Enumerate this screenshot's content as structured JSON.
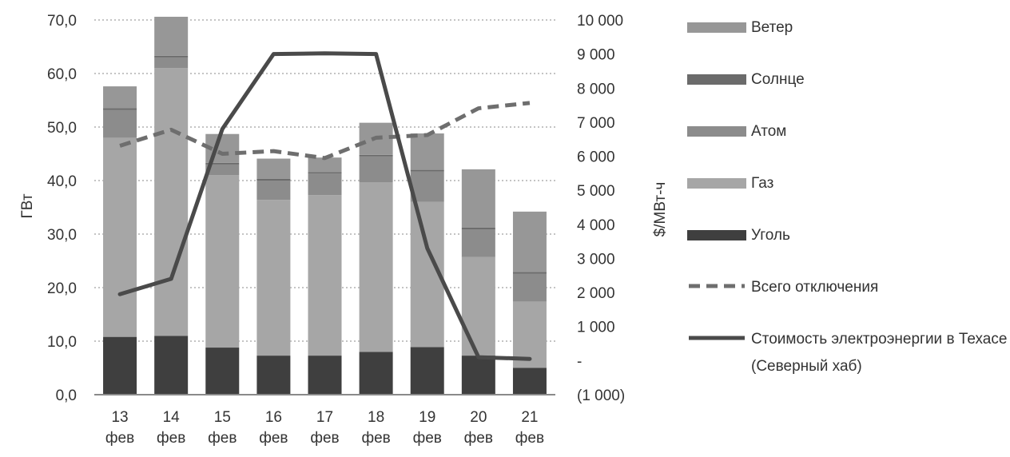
{
  "chart_data": {
    "type": "bar",
    "stacked": true,
    "categories": [
      "13 фев",
      "14 фев",
      "15 фев",
      "16 фев",
      "17 фев",
      "18 фев",
      "19 фев",
      "20 фев",
      "21 фев"
    ],
    "ylabel": "ГВт",
    "ylabel_right": "$/МВт-ч",
    "ylim": [
      0,
      70
    ],
    "ylim_right": [
      -1000,
      10000
    ],
    "y_ticks": [
      "0,0",
      "10,0",
      "20,0",
      "30,0",
      "40,0",
      "50,0",
      "60,0",
      "70,0"
    ],
    "y_right_ticks": [
      "(1 000)",
      "-",
      "1 000",
      "2 000",
      "3 000",
      "4 000",
      "5 000",
      "6 000",
      "7 000",
      "8 000",
      "9 000",
      "10 000"
    ],
    "grid": true,
    "legend_position": "right",
    "series": [
      {
        "name": "Уголь",
        "kind": "bar",
        "axis": "left",
        "color": "#3f3f3f",
        "values": [
          10.8,
          11.0,
          8.8,
          7.3,
          7.3,
          8.0,
          8.9,
          7.3,
          5.0
        ]
      },
      {
        "name": "Газ",
        "kind": "bar",
        "axis": "left",
        "color": "#a6a6a6",
        "values": [
          37.2,
          50.0,
          32.2,
          29.1,
          30.0,
          31.7,
          27.1,
          18.4,
          12.4
        ]
      },
      {
        "name": "Атом",
        "kind": "bar",
        "axis": "left",
        "color": "#8c8c8c",
        "values": [
          5.2,
          2.0,
          2.0,
          3.6,
          4.0,
          4.8,
          5.7,
          5.2,
          5.2
        ]
      },
      {
        "name": "Солнце",
        "kind": "bar",
        "axis": "left",
        "color": "#6b6b6b",
        "values": [
          0.3,
          0.3,
          0.3,
          0.3,
          0.3,
          0.3,
          0.3,
          0.3,
          0.3
        ]
      },
      {
        "name": "Ветер",
        "kind": "bar",
        "axis": "left",
        "color": "#979797",
        "values": [
          4.1,
          7.3,
          5.4,
          3.8,
          2.7,
          6.0,
          6.8,
          10.9,
          11.3
        ]
      },
      {
        "name": "Всего отключения",
        "kind": "line",
        "style": "dashed",
        "axis": "left",
        "color": "#6e6e6e",
        "values": [
          46.5,
          49.5,
          45.0,
          45.5,
          44.2,
          48.0,
          48.5,
          53.5,
          54.5
        ]
      },
      {
        "name": "Стоимость электроэнергии в Техасе (Северный хаб)",
        "kind": "line",
        "style": "solid",
        "axis": "right",
        "color": "#4a4a4a",
        "values": [
          1950,
          2400,
          6800,
          9000,
          9020,
          9000,
          3300,
          100,
          50
        ]
      }
    ]
  }
}
